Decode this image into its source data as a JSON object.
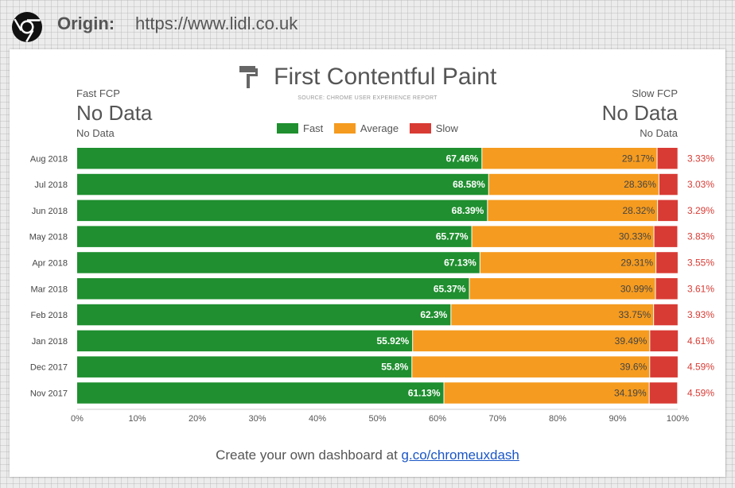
{
  "origin": {
    "label": "Origin:",
    "url": "https://www.lidl.co.uk"
  },
  "header": {
    "title": "First Contentful Paint",
    "source": "SOURCE: CHROME USER EXPERIENCE REPORT",
    "fast_stat": {
      "label": "Fast FCP",
      "value": "No Data",
      "sub": "No Data"
    },
    "slow_stat": {
      "label": "Slow FCP",
      "value": "No Data",
      "sub": "No Data"
    }
  },
  "legend": [
    {
      "label": "Fast",
      "color": "#1f8f2f"
    },
    {
      "label": "Average",
      "color": "#f59b1f"
    },
    {
      "label": "Slow",
      "color": "#d83b34"
    }
  ],
  "chart_data": {
    "type": "bar",
    "orientation": "horizontal",
    "stacked": true,
    "categories": [
      "Aug 2018",
      "Jul 2018",
      "Jun 2018",
      "May 2018",
      "Apr 2018",
      "Mar 2018",
      "Feb 2018",
      "Jan 2018",
      "Dec 2017",
      "Nov 2017"
    ],
    "series": [
      {
        "name": "Fast",
        "color": "#1f8f2f",
        "values": [
          67.46,
          68.58,
          68.39,
          65.77,
          67.13,
          65.37,
          62.3,
          55.92,
          55.8,
          61.13
        ]
      },
      {
        "name": "Average",
        "color": "#f59b1f",
        "values": [
          29.17,
          28.36,
          28.32,
          30.33,
          29.31,
          30.99,
          33.75,
          39.49,
          39.6,
          34.19
        ]
      },
      {
        "name": "Slow",
        "color": "#d83b34",
        "values": [
          3.33,
          3.03,
          3.29,
          3.83,
          3.55,
          3.61,
          3.93,
          4.61,
          4.59,
          4.59
        ]
      }
    ],
    "xlim": [
      0,
      100
    ],
    "xticks": [
      "0%",
      "10%",
      "20%",
      "30%",
      "40%",
      "50%",
      "60%",
      "70%",
      "80%",
      "90%",
      "100%"
    ],
    "grid": false,
    "legend_position": "top-center",
    "data_labels": true
  },
  "footer": {
    "text": "Create your own dashboard at ",
    "link": "g.co/chromeuxdash"
  }
}
